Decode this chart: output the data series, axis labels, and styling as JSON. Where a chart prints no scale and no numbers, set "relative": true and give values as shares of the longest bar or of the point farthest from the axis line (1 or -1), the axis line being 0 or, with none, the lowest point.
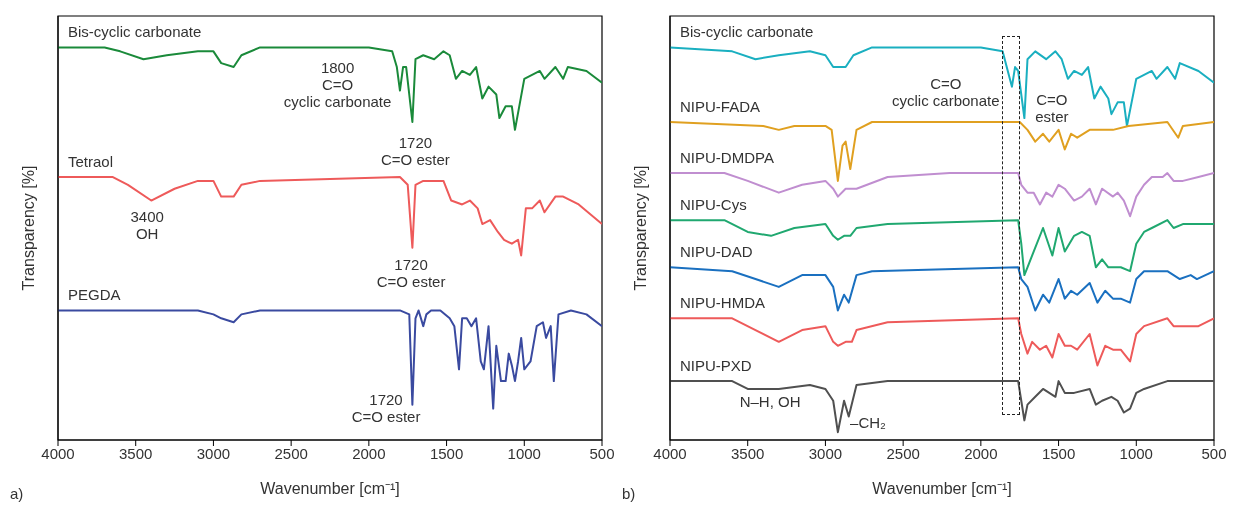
{
  "chart_data": [
    {
      "type": "line",
      "xlabel": "Wavenumber [cm⁻¹]",
      "ylabel": "Transparency [%]",
      "relative": true,
      "xlim": [
        4000,
        500
      ],
      "xticks": [
        4000,
        3500,
        3000,
        2500,
        2000,
        1500,
        1000,
        500
      ],
      "series": [
        {
          "name": "Bis-cyclic carbonate",
          "color": "#1a8a3a",
          "x": [
            4000,
            3700,
            3600,
            3450,
            3300,
            3100,
            3000,
            2950,
            2870,
            2820,
            2700,
            2000,
            1850,
            1820,
            1800,
            1780,
            1760,
            1720,
            1700,
            1650,
            1580,
            1520,
            1480,
            1440,
            1400,
            1350,
            1310,
            1270,
            1230,
            1180,
            1160,
            1120,
            1080,
            1060,
            1000,
            950,
            900,
            870,
            800,
            750,
            720,
            600,
            500
          ],
          "values": [
            1.0,
            1.0,
            0.99,
            0.97,
            0.98,
            0.99,
            0.99,
            0.96,
            0.95,
            0.98,
            1.0,
            1.0,
            0.99,
            0.95,
            0.89,
            0.95,
            0.95,
            0.81,
            0.97,
            0.98,
            0.97,
            0.99,
            0.98,
            0.92,
            0.94,
            0.93,
            0.95,
            0.87,
            0.9,
            0.88,
            0.82,
            0.85,
            0.85,
            0.79,
            0.92,
            0.93,
            0.94,
            0.92,
            0.95,
            0.92,
            0.95,
            0.94,
            0.91
          ]
        },
        {
          "name": "Tetraol",
          "color": "#ee5a5a",
          "x": [
            4000,
            3650,
            3550,
            3400,
            3250,
            3100,
            3000,
            2950,
            2870,
            2820,
            2700,
            1800,
            1750,
            1720,
            1700,
            1650,
            1520,
            1470,
            1400,
            1350,
            1300,
            1270,
            1220,
            1170,
            1130,
            1080,
            1040,
            1020,
            990,
            950,
            900,
            870,
            800,
            750,
            650,
            500
          ],
          "values": [
            0.67,
            0.67,
            0.65,
            0.61,
            0.64,
            0.66,
            0.66,
            0.62,
            0.62,
            0.65,
            0.66,
            0.67,
            0.65,
            0.49,
            0.65,
            0.66,
            0.66,
            0.61,
            0.6,
            0.61,
            0.59,
            0.55,
            0.56,
            0.53,
            0.51,
            0.5,
            0.51,
            0.47,
            0.59,
            0.59,
            0.61,
            0.58,
            0.62,
            0.62,
            0.6,
            0.55
          ]
        },
        {
          "name": "PEGDA",
          "color": "#3a4aa0",
          "x": [
            4000,
            3500,
            3100,
            3000,
            2950,
            2870,
            2820,
            2700,
            1800,
            1740,
            1720,
            1700,
            1680,
            1650,
            1630,
            1600,
            1540,
            1480,
            1450,
            1420,
            1400,
            1370,
            1340,
            1310,
            1280,
            1260,
            1230,
            1200,
            1180,
            1150,
            1120,
            1100,
            1080,
            1060,
            1040,
            1020,
            1000,
            960,
            920,
            880,
            860,
            830,
            810,
            780,
            700,
            600,
            500
          ],
          "values": [
            0.33,
            0.33,
            0.33,
            0.32,
            0.31,
            0.3,
            0.32,
            0.33,
            0.33,
            0.32,
            0.09,
            0.31,
            0.33,
            0.29,
            0.32,
            0.33,
            0.33,
            0.31,
            0.29,
            0.18,
            0.31,
            0.31,
            0.29,
            0.31,
            0.2,
            0.18,
            0.29,
            0.08,
            0.24,
            0.15,
            0.15,
            0.22,
            0.19,
            0.15,
            0.2,
            0.26,
            0.18,
            0.2,
            0.29,
            0.3,
            0.26,
            0.29,
            0.15,
            0.32,
            0.33,
            0.32,
            0.29
          ]
        }
      ],
      "annotations": [
        "1800\nC=O\ncyclic carbonate",
        "1720\nC=O ester",
        "3400\nOH",
        "1720\nC=O ester",
        "1720\nC=O ester",
        "a)"
      ]
    },
    {
      "type": "line",
      "xlabel": "Wavenumber [cm⁻¹]",
      "ylabel": "Transparency [%]",
      "relative": true,
      "xlim": [
        4000,
        500
      ],
      "xticks": [
        4000,
        3500,
        3000,
        2500,
        2000,
        1500,
        1000,
        500
      ],
      "series": [
        {
          "name": "Bis-cyclic carbonate",
          "color": "#1aafc0",
          "x": [
            4000,
            3600,
            3450,
            3300,
            3100,
            3000,
            2950,
            2870,
            2820,
            2700,
            2000,
            1860,
            1820,
            1800,
            1780,
            1760,
            1720,
            1700,
            1650,
            1580,
            1520,
            1480,
            1440,
            1400,
            1350,
            1310,
            1270,
            1230,
            1180,
            1160,
            1120,
            1080,
            1060,
            1000,
            950,
            900,
            870,
            800,
            750,
            720,
            600,
            500
          ],
          "values": [
            1.0,
            0.99,
            0.97,
            0.98,
            0.99,
            0.98,
            0.95,
            0.95,
            0.98,
            1.0,
            1.0,
            0.99,
            0.93,
            0.9,
            0.95,
            0.94,
            0.82,
            0.97,
            0.99,
            0.97,
            0.99,
            0.97,
            0.92,
            0.94,
            0.93,
            0.95,
            0.87,
            0.9,
            0.87,
            0.83,
            0.86,
            0.86,
            0.8,
            0.92,
            0.93,
            0.94,
            0.92,
            0.95,
            0.92,
            0.96,
            0.94,
            0.91
          ]
        },
        {
          "name": "NIPU-FADA",
          "color": "#e0a020",
          "x": [
            4000,
            3400,
            3300,
            3200,
            3000,
            2960,
            2920,
            2890,
            2870,
            2840,
            2800,
            2700,
            1750,
            1700,
            1650,
            1600,
            1560,
            1500,
            1460,
            1420,
            1380,
            1300,
            1260,
            1230,
            1150,
            1050,
            800,
            730,
            700,
            500
          ],
          "values": [
            0.81,
            0.8,
            0.79,
            0.8,
            0.8,
            0.79,
            0.66,
            0.75,
            0.76,
            0.69,
            0.79,
            0.81,
            0.81,
            0.79,
            0.76,
            0.78,
            0.76,
            0.79,
            0.74,
            0.78,
            0.77,
            0.79,
            0.79,
            0.79,
            0.79,
            0.8,
            0.81,
            0.77,
            0.8,
            0.81
          ]
        },
        {
          "name": "NIPU-DMDPA",
          "color": "#c08ed0",
          "x": [
            4000,
            3650,
            3500,
            3300,
            3150,
            3000,
            2950,
            2920,
            2870,
            2800,
            2600,
            2200,
            1760,
            1740,
            1700,
            1660,
            1620,
            1580,
            1540,
            1500,
            1460,
            1400,
            1350,
            1300,
            1260,
            1220,
            1150,
            1120,
            1080,
            1040,
            1000,
            950,
            900,
            830,
            800,
            760,
            700,
            600,
            500
          ],
          "values": [
            0.68,
            0.68,
            0.66,
            0.63,
            0.65,
            0.66,
            0.64,
            0.62,
            0.64,
            0.64,
            0.67,
            0.68,
            0.68,
            0.65,
            0.63,
            0.63,
            0.6,
            0.63,
            0.62,
            0.65,
            0.64,
            0.61,
            0.62,
            0.64,
            0.6,
            0.64,
            0.62,
            0.63,
            0.61,
            0.57,
            0.62,
            0.65,
            0.67,
            0.67,
            0.68,
            0.66,
            0.66,
            0.67,
            0.68
          ]
        },
        {
          "name": "NIPU-Cys",
          "color": "#20a870",
          "x": [
            4000,
            3650,
            3500,
            3350,
            3200,
            3000,
            2950,
            2920,
            2880,
            2840,
            2800,
            2600,
            1760,
            1740,
            1720,
            1700,
            1650,
            1600,
            1540,
            1500,
            1460,
            1400,
            1350,
            1300,
            1260,
            1220,
            1180,
            1150,
            1100,
            1040,
            1000,
            950,
            900,
            800,
            760,
            700,
            500
          ],
          "values": [
            0.56,
            0.56,
            0.53,
            0.52,
            0.54,
            0.55,
            0.52,
            0.51,
            0.52,
            0.52,
            0.54,
            0.55,
            0.56,
            0.5,
            0.42,
            0.44,
            0.49,
            0.54,
            0.47,
            0.54,
            0.48,
            0.52,
            0.53,
            0.52,
            0.44,
            0.46,
            0.44,
            0.44,
            0.44,
            0.43,
            0.5,
            0.53,
            0.54,
            0.56,
            0.54,
            0.55,
            0.55
          ]
        },
        {
          "name": "NIPU-DAD",
          "color": "#1a70c0",
          "x": [
            4000,
            3600,
            3450,
            3300,
            3150,
            3000,
            2950,
            2920,
            2880,
            2850,
            2800,
            2700,
            1760,
            1740,
            1700,
            1650,
            1600,
            1560,
            1500,
            1460,
            1420,
            1380,
            1300,
            1250,
            1200,
            1150,
            1100,
            1040,
            1000,
            950,
            800,
            720,
            650,
            610,
            500
          ],
          "values": [
            0.44,
            0.43,
            0.41,
            0.39,
            0.42,
            0.42,
            0.39,
            0.33,
            0.37,
            0.35,
            0.42,
            0.43,
            0.44,
            0.41,
            0.39,
            0.33,
            0.37,
            0.35,
            0.41,
            0.36,
            0.38,
            0.37,
            0.4,
            0.35,
            0.38,
            0.36,
            0.36,
            0.35,
            0.41,
            0.43,
            0.43,
            0.41,
            0.42,
            0.41,
            0.43
          ]
        },
        {
          "name": "NIPU-HMDA",
          "color": "#ee5a5a",
          "x": [
            4000,
            3600,
            3450,
            3300,
            3150,
            3000,
            2950,
            2920,
            2870,
            2830,
            2800,
            2600,
            1760,
            1740,
            1700,
            1670,
            1620,
            1580,
            1540,
            1500,
            1460,
            1420,
            1380,
            1300,
            1250,
            1200,
            1150,
            1100,
            1040,
            1000,
            950,
            800,
            760,
            700,
            600,
            500
          ],
          "values": [
            0.31,
            0.31,
            0.28,
            0.25,
            0.28,
            0.29,
            0.25,
            0.24,
            0.25,
            0.25,
            0.28,
            0.3,
            0.31,
            0.27,
            0.22,
            0.25,
            0.23,
            0.24,
            0.21,
            0.27,
            0.24,
            0.24,
            0.23,
            0.27,
            0.19,
            0.24,
            0.23,
            0.23,
            0.2,
            0.27,
            0.29,
            0.31,
            0.29,
            0.29,
            0.29,
            0.31
          ]
        },
        {
          "name": "NIPU-PXD",
          "color": "#505050",
          "x": [
            4000,
            3600,
            3500,
            3300,
            3100,
            3000,
            2950,
            2920,
            2880,
            2850,
            2800,
            2600,
            1760,
            1740,
            1720,
            1700,
            1650,
            1600,
            1520,
            1500,
            1460,
            1400,
            1300,
            1260,
            1220,
            1160,
            1120,
            1080,
            1040,
            1000,
            950,
            800,
            700,
            500
          ],
          "values": [
            0.15,
            0.15,
            0.13,
            0.13,
            0.14,
            0.13,
            0.1,
            0.02,
            0.1,
            0.06,
            0.14,
            0.15,
            0.15,
            0.1,
            0.05,
            0.09,
            0.11,
            0.13,
            0.11,
            0.15,
            0.12,
            0.12,
            0.13,
            0.09,
            0.1,
            0.11,
            0.1,
            0.07,
            0.08,
            0.12,
            0.13,
            0.15,
            0.15,
            0.15
          ]
        }
      ],
      "annotations": [
        "C=O\ncyclic carbonate",
        "C=O\nester",
        "N–H, OH",
        "–CH₂",
        "b)"
      ]
    }
  ]
}
